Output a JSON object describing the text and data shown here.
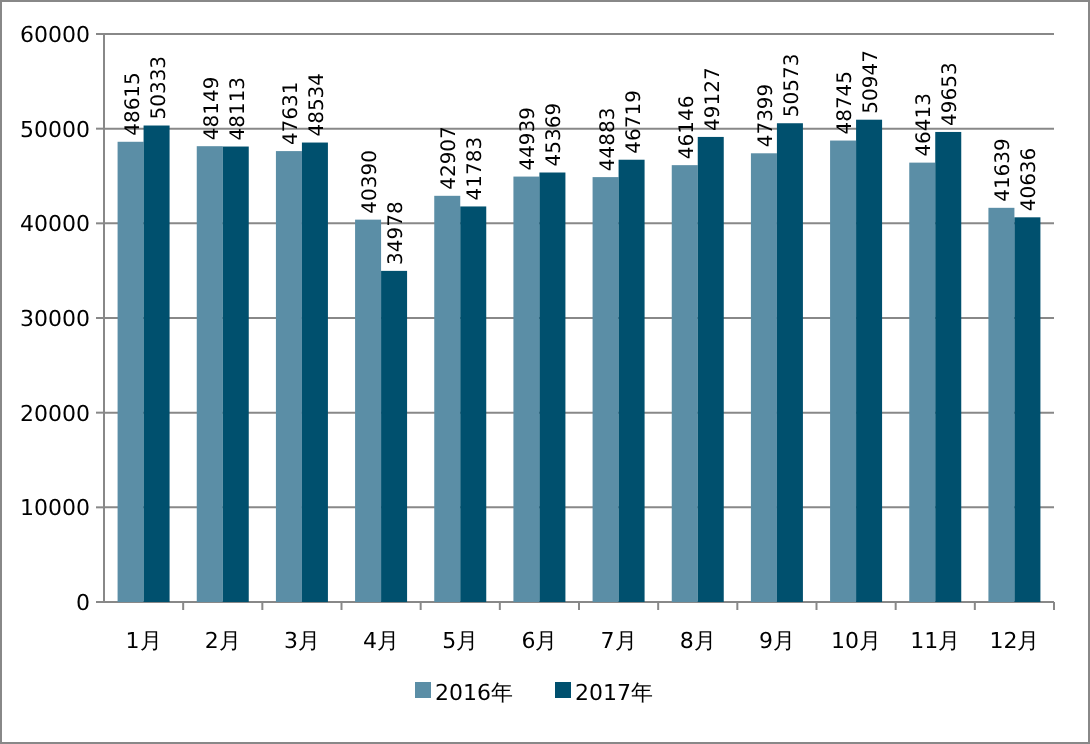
{
  "chart_data": {
    "type": "bar",
    "categories": [
      "1月",
      "2月",
      "3月",
      "4月",
      "5月",
      "6月",
      "7月",
      "8月",
      "9月",
      "10月",
      "11月",
      "12月"
    ],
    "series": [
      {
        "name": "2016年",
        "color": "#5b8ea6",
        "values": [
          48615,
          48149,
          47631,
          40390,
          42907,
          44939,
          44883,
          46146,
          47399,
          48745,
          46413,
          41639
        ]
      },
      {
        "name": "2017年",
        "color": "#00506e",
        "values": [
          50333,
          48113,
          48534,
          34978,
          41783,
          45369,
          46719,
          49127,
          50573,
          50947,
          49653,
          40636
        ]
      }
    ],
    "ylim": [
      0,
      60000
    ],
    "yticks": [
      0,
      10000,
      20000,
      30000,
      40000,
      50000,
      60000
    ],
    "grid": "y",
    "legend": "bottom",
    "data_labels": true
  }
}
